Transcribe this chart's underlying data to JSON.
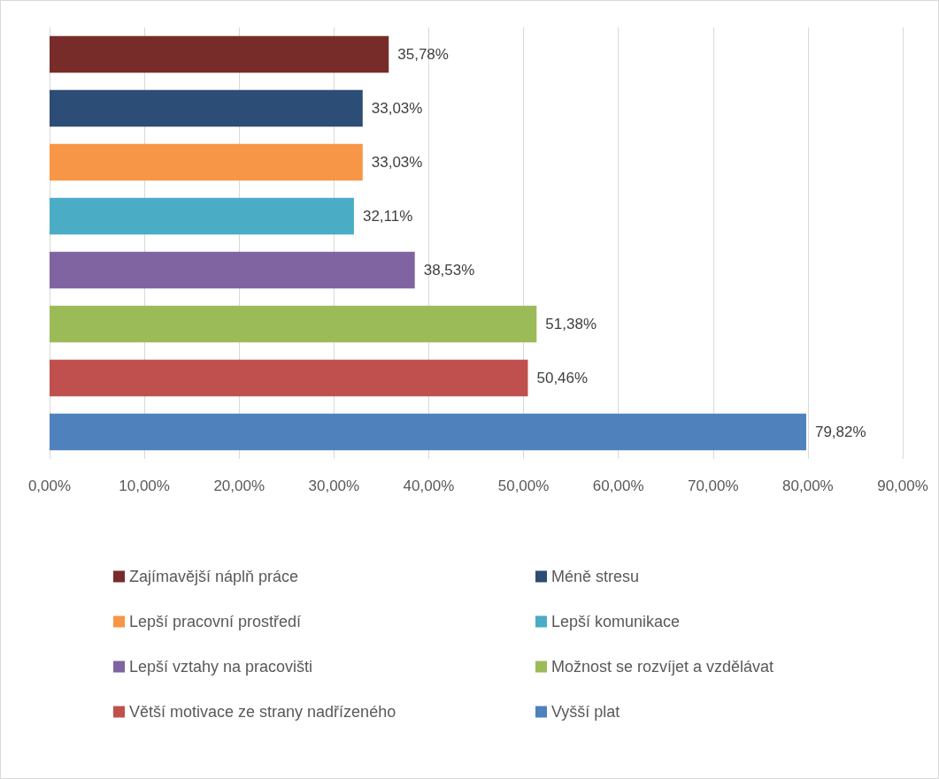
{
  "chart_data": {
    "type": "bar",
    "orientation": "horizontal",
    "stacked": true,
    "categories": [
      null,
      null,
      null,
      null,
      null,
      null,
      null,
      null
    ],
    "series": [
      {
        "name": "Zajímavější náplň práce",
        "color": "#772c2a",
        "values": [
          35.78,
          null,
          null,
          null,
          null,
          null,
          null,
          null
        ],
        "value_labels": [
          "35,78%",
          null,
          null,
          null,
          null,
          null,
          null,
          null
        ]
      },
      {
        "name": "Méně stresu",
        "color": "#2c4d75",
        "values": [
          null,
          33.03,
          null,
          null,
          null,
          null,
          null,
          null
        ],
        "value_labels": [
          null,
          "33,03%",
          null,
          null,
          null,
          null,
          null,
          null
        ]
      },
      {
        "name": "Lepší pracovní prostředí",
        "color": "#f79646",
        "values": [
          null,
          null,
          33.03,
          null,
          null,
          null,
          null,
          null
        ],
        "value_labels": [
          null,
          null,
          "33,03%",
          null,
          null,
          null,
          null,
          null
        ]
      },
      {
        "name": "Lepší komunikace",
        "color": "#4bacc6",
        "values": [
          null,
          null,
          null,
          32.11,
          null,
          null,
          null,
          null
        ],
        "value_labels": [
          null,
          null,
          null,
          "32,11%",
          null,
          null,
          null,
          null
        ]
      },
      {
        "name": "Lepší vztahy na pracovišti",
        "color": "#8064a2",
        "values": [
          null,
          null,
          null,
          null,
          38.53,
          null,
          null,
          null
        ],
        "value_labels": [
          null,
          null,
          null,
          null,
          "38,53%",
          null,
          null,
          null
        ]
      },
      {
        "name": "Možnost se rozvíjet a vzdělávat",
        "color": "#9bbb59",
        "values": [
          null,
          null,
          null,
          null,
          null,
          51.38,
          null,
          null
        ],
        "value_labels": [
          null,
          null,
          null,
          null,
          null,
          "51,38%",
          null,
          null
        ]
      },
      {
        "name": "Větší motivace ze strany nadřízeného",
        "color": "#c0504d",
        "values": [
          null,
          null,
          null,
          null,
          null,
          null,
          50.46,
          null
        ],
        "value_labels": [
          null,
          null,
          null,
          null,
          null,
          null,
          "50,46%",
          null
        ]
      },
      {
        "name": "Vyšší plat",
        "color": "#4f81bd",
        "values": [
          null,
          null,
          null,
          null,
          null,
          null,
          null,
          79.82
        ],
        "value_labels": [
          null,
          null,
          null,
          null,
          null,
          null,
          null,
          "79,82%"
        ]
      }
    ],
    "xlim": [
      0,
      90
    ],
    "xticks": [
      {
        "value": 0,
        "label": "0,00%"
      },
      {
        "value": 10,
        "label": "10,00%"
      },
      {
        "value": 20,
        "label": "20,00%"
      },
      {
        "value": 30,
        "label": "30,00%"
      },
      {
        "value": 40,
        "label": "40,00%"
      },
      {
        "value": 50,
        "label": "50,00%"
      },
      {
        "value": 60,
        "label": "60,00%"
      },
      {
        "value": 70,
        "label": "70,00%"
      },
      {
        "value": 80,
        "label": "80,00%"
      },
      {
        "value": 90,
        "label": "90,00%"
      }
    ],
    "grid": "x",
    "legend": "bottom"
  }
}
